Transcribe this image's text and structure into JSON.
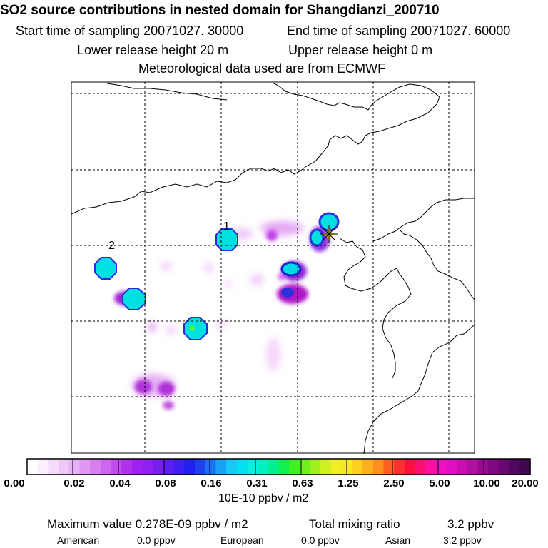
{
  "header": {
    "title": "SO2 source contributions in nested domain for Shangdianzi_200710",
    "start_label": "Start time of sampling 20071027. 30000",
    "end_label": "End time of sampling 20071027. 60000",
    "lower_label": "Lower release height   20 m",
    "upper_label": "Upper release height    0 m",
    "met_label": "Meteorological data used are from ECMWF"
  },
  "chart_data": {
    "type": "heatmap",
    "title": "SO2 source contributions in nested domain for Shangdianzi_200710",
    "colorbar": {
      "ticks": [
        "0.00",
        "0.02",
        "0.04",
        "0.08",
        "0.16",
        "0.31",
        "0.63",
        "1.25",
        "2.50",
        "5.00",
        "10.00",
        "20.00"
      ],
      "unit": "10E-10 ppbv / m2"
    },
    "markers": [
      {
        "label": "1",
        "level": 0.16
      },
      {
        "label": "2",
        "level": 0.16
      }
    ],
    "receptor": "Shangdianzi",
    "colors": {
      "cyan": "#00e8e8",
      "blue": "#2020e0",
      "magenta": "#c000c0",
      "violet": "#a040ff",
      "receptor_star": "#ffd700"
    }
  },
  "footer": {
    "max_label": "Maximum value  0.278E-09 ppbv / m2",
    "total_label": "Total mixing ratio",
    "total_value": "3.2 ppbv",
    "american_label": "American",
    "american_value": "0.0 ppbv",
    "european_label": "European",
    "european_value": "0.0 ppbv",
    "asian_label": "Asian",
    "asian_value": "3.2 ppbv"
  }
}
